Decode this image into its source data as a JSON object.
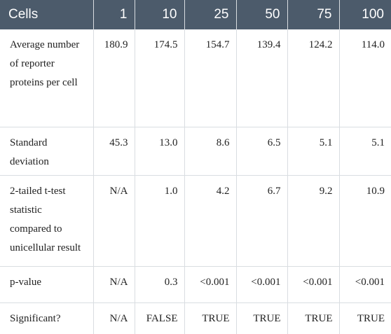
{
  "table": {
    "header": [
      "Cells",
      "1",
      "10",
      "25",
      "50",
      "75",
      "100"
    ],
    "rows": [
      [
        "Average number of reporter proteins per cell",
        "180.9",
        "174.5",
        "154.7",
        "139.4",
        "124.2",
        "114.0"
      ],
      [
        "Standard deviation",
        "45.3",
        "13.0",
        "8.6",
        "6.5",
        "5.1",
        "5.1"
      ],
      [
        "2-tailed t-test statistic compared to unicellular result",
        "N/A",
        "1.0",
        "4.2",
        "6.7",
        "9.2",
        "10.9"
      ],
      [
        "p-value",
        "N/A",
        "0.3",
        "<0.001",
        "<0.001",
        "<0.001",
        "<0.001"
      ],
      [
        "Significant?",
        "N/A",
        "FALSE",
        "TRUE",
        "TRUE",
        "TRUE",
        "TRUE"
      ]
    ]
  }
}
